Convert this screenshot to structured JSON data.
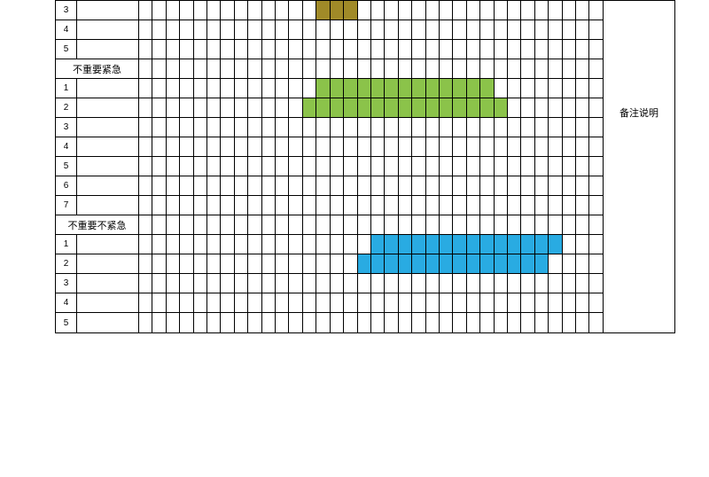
{
  "grid_cols": 34,
  "right_panel": {
    "label": "备注说明"
  },
  "colors": {
    "green": "#8bc34a",
    "blue": "#29abe2",
    "olive": "#a08a28",
    "border": "#000000",
    "background": "#ffffff"
  },
  "sections": [
    {
      "kind": "data",
      "rows": [
        {
          "num": "3",
          "fills": [
            {
              "start": 13,
              "end": 15,
              "color": "olive"
            }
          ]
        },
        {
          "num": "4",
          "fills": []
        },
        {
          "num": "5",
          "fills": []
        }
      ]
    },
    {
      "kind": "header",
      "label": "不重要紧急"
    },
    {
      "kind": "data",
      "rows": [
        {
          "num": "1",
          "fills": [
            {
              "start": 13,
              "end": 25,
              "color": "green"
            }
          ]
        },
        {
          "num": "2",
          "fills": [
            {
              "start": 12,
              "end": 26,
              "color": "green"
            }
          ]
        },
        {
          "num": "3",
          "fills": []
        },
        {
          "num": "4",
          "fills": []
        },
        {
          "num": "5",
          "fills": []
        },
        {
          "num": "6",
          "fills": []
        },
        {
          "num": "7",
          "fills": []
        }
      ]
    },
    {
      "kind": "header",
      "label": "不重要不紧急"
    },
    {
      "kind": "data",
      "rows": [
        {
          "num": "1",
          "fills": [
            {
              "start": 17,
              "end": 30,
              "color": "blue"
            }
          ]
        },
        {
          "num": "2",
          "fills": [
            {
              "start": 16,
              "end": 29,
              "color": "blue"
            }
          ]
        },
        {
          "num": "3",
          "fills": []
        },
        {
          "num": "4",
          "fills": []
        },
        {
          "num": "5",
          "fills": []
        }
      ]
    }
  ]
}
